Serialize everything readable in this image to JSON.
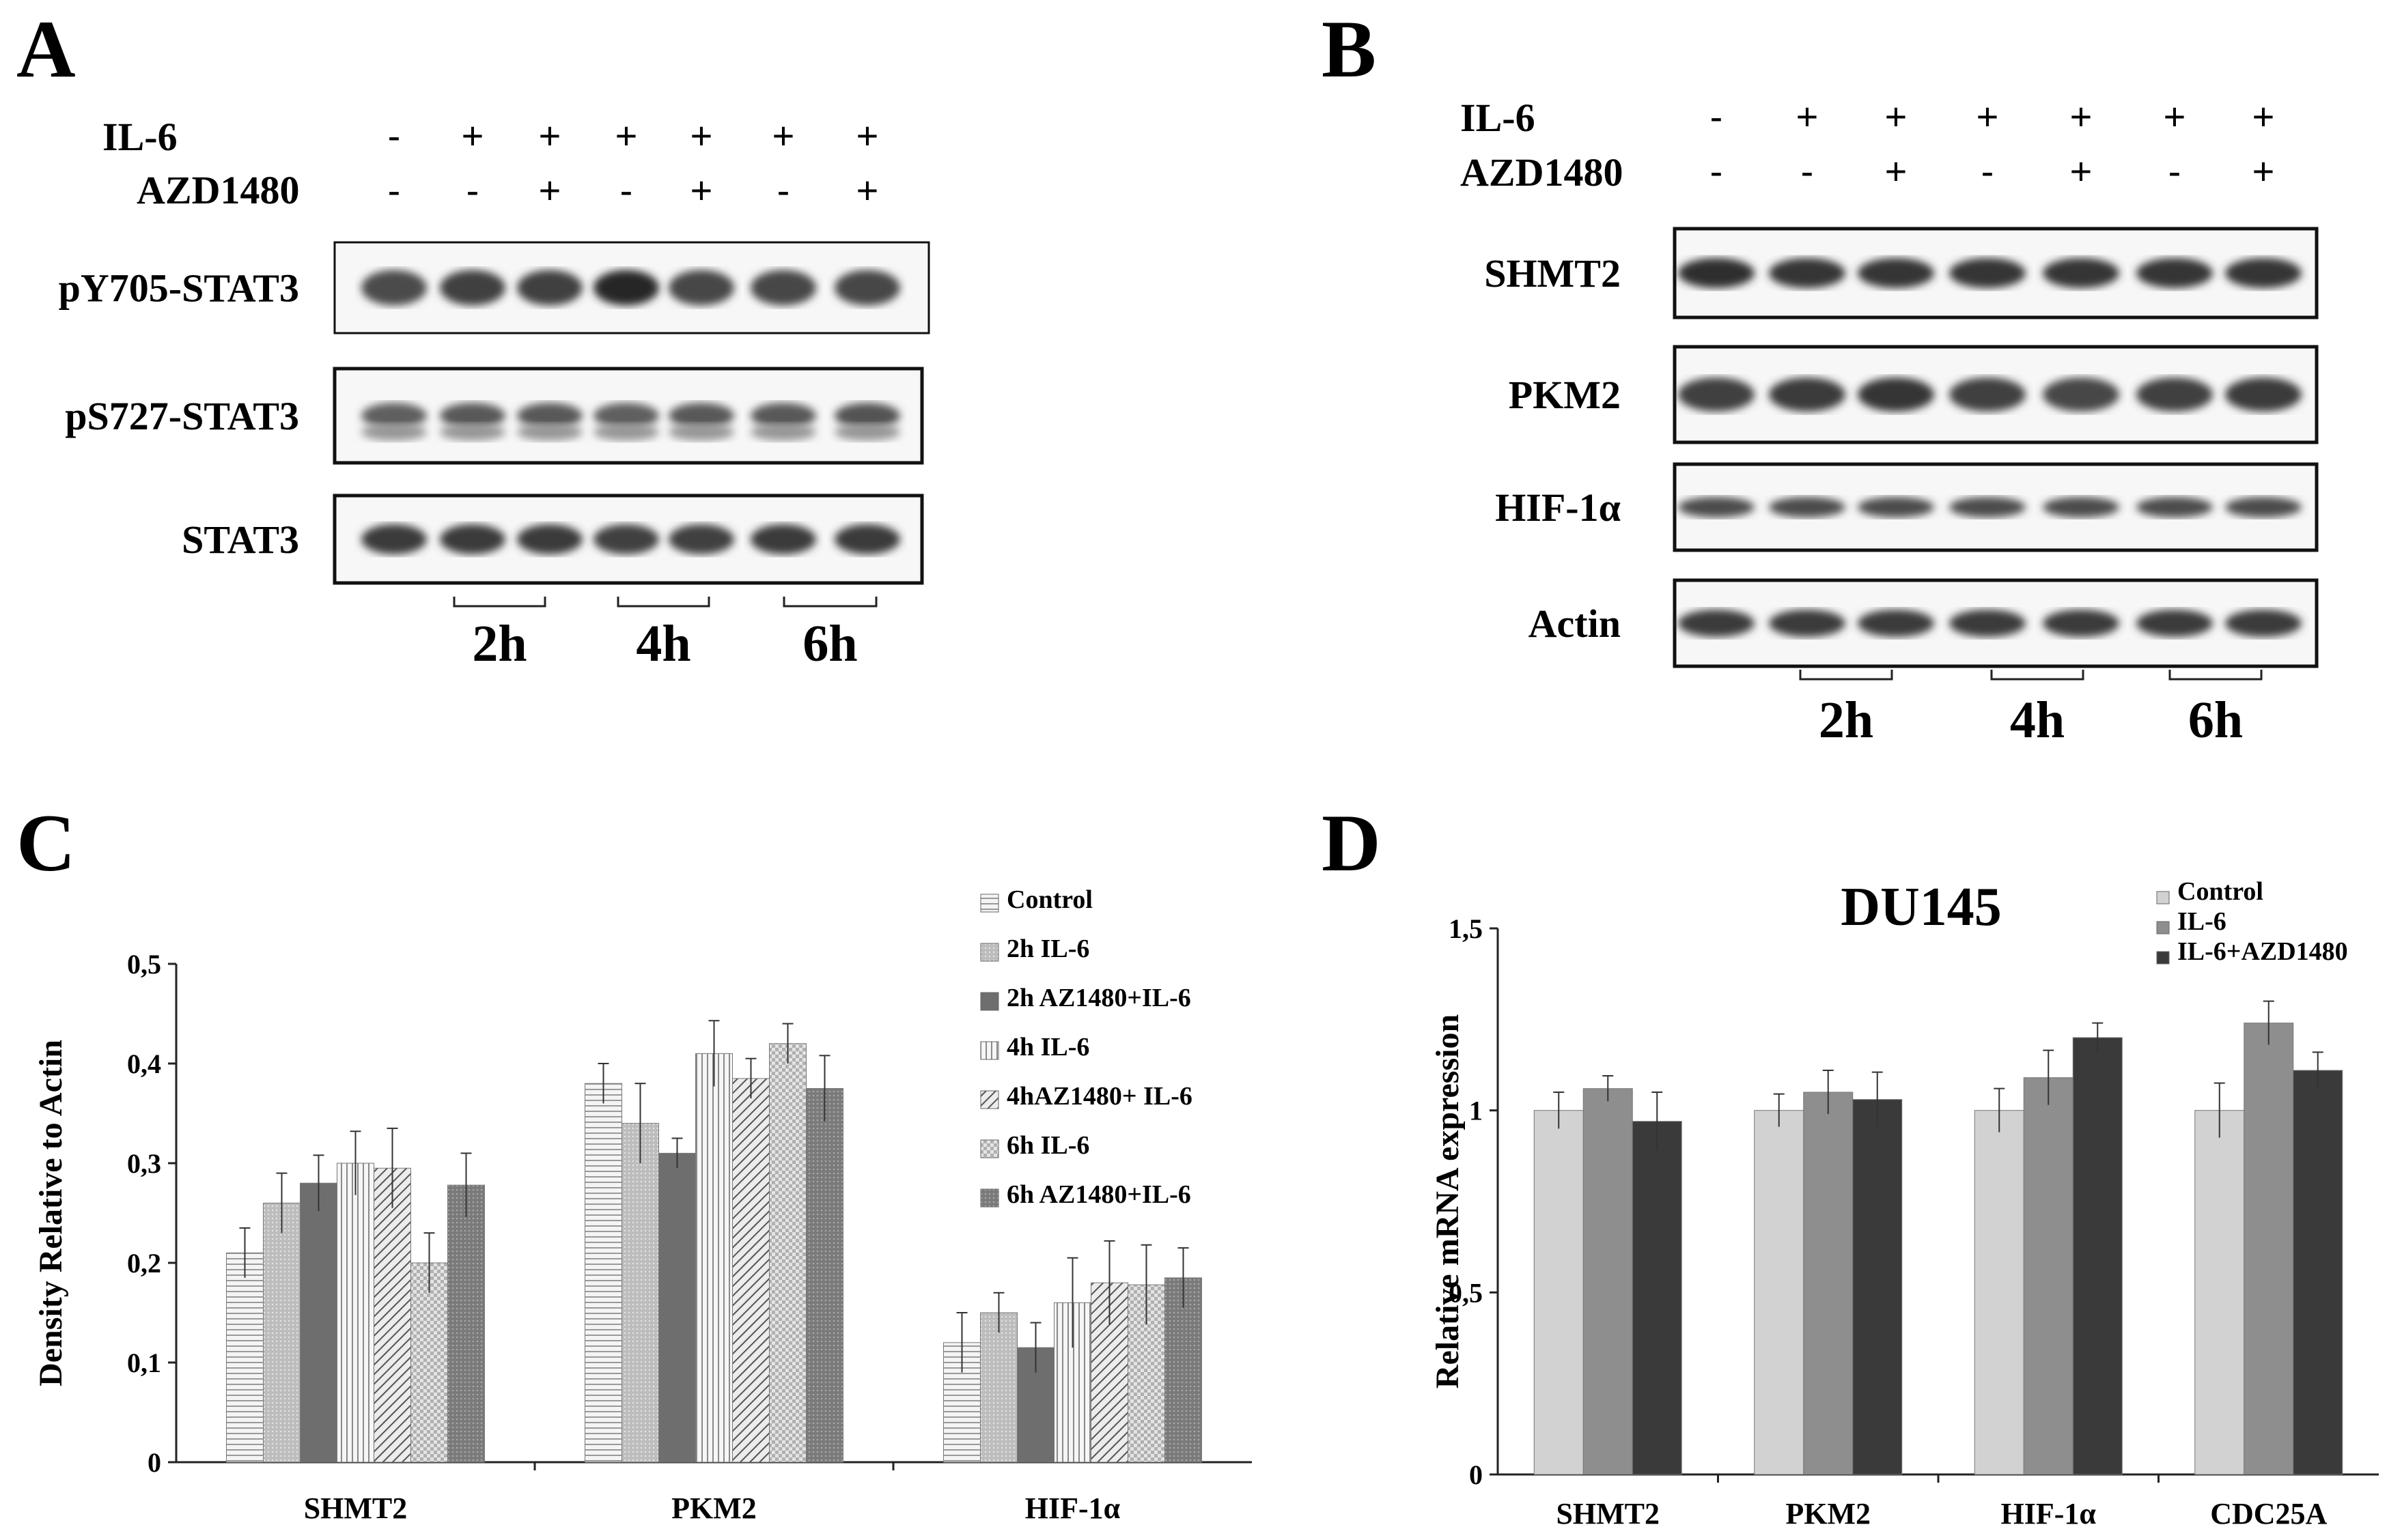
{
  "panels": {
    "A": {
      "letter": "A",
      "treatments": [
        {
          "label": "IL-6",
          "signs": [
            "-",
            "+",
            "+",
            "+",
            "+",
            "+",
            "+"
          ]
        },
        {
          "label": "AZD1480",
          "signs": [
            "-",
            "-",
            "+",
            "-",
            "+",
            "-",
            "+"
          ]
        }
      ],
      "blots": [
        "pY705-STAT3",
        "pS727-STAT3",
        "STAT3"
      ],
      "times": [
        "2h",
        "4h",
        "6h"
      ]
    },
    "B": {
      "letter": "B",
      "treatments": [
        {
          "label": "IL-6",
          "signs": [
            "-",
            "+",
            "+",
            "+",
            "+",
            "+",
            "+"
          ]
        },
        {
          "label": "AZD1480",
          "signs": [
            "-",
            "-",
            "+",
            "-",
            "+",
            "-",
            "+"
          ]
        }
      ],
      "blots": [
        "SHMT2",
        "PKM2",
        "HIF-1α",
        "Actin"
      ],
      "times": [
        "2h",
        "4h",
        "6h"
      ]
    },
    "C": {
      "letter": "C"
    },
    "D": {
      "letter": "D"
    }
  },
  "chart_data": [
    {
      "panel": "C",
      "type": "bar",
      "title": "",
      "xlabel": "",
      "ylabel": "Density Relative to Actin",
      "ylim": [
        0,
        0.5
      ],
      "yticks": [
        "0",
        "0,1",
        "0,2",
        "0,3",
        "0,4",
        "0,5"
      ],
      "grid": false,
      "legend_position": "top-right",
      "categories": [
        "SHMT2",
        "PKM2",
        "HIF-1α"
      ],
      "series": [
        {
          "name": "Control",
          "values": [
            0.21,
            0.38,
            0.12
          ],
          "errors": [
            0.025,
            0.02,
            0.03
          ],
          "color": "#efefef",
          "pattern": "hlines"
        },
        {
          "name": "2h IL-6",
          "values": [
            0.26,
            0.34,
            0.15
          ],
          "errors": [
            0.03,
            0.04,
            0.02
          ],
          "color": "#c8c8c8",
          "pattern": "dots"
        },
        {
          "name": "2h AZ1480+IL-6",
          "values": [
            0.28,
            0.31,
            0.115
          ],
          "errors": [
            0.028,
            0.015,
            0.025
          ],
          "color": "#6e6e6e",
          "pattern": "solid"
        },
        {
          "name": "4h IL-6",
          "values": [
            0.3,
            0.41,
            0.16
          ],
          "errors": [
            0.032,
            0.033,
            0.045
          ],
          "color": "#f3f3f3",
          "pattern": "vlines"
        },
        {
          "name": "4hAZ1480+ IL-6",
          "values": [
            0.295,
            0.385,
            0.18
          ],
          "errors": [
            0.04,
            0.02,
            0.042
          ],
          "color": "#e0e0e0",
          "pattern": "diag"
        },
        {
          "name": "6h IL-6",
          "values": [
            0.2,
            0.42,
            0.178
          ],
          "errors": [
            0.03,
            0.02,
            0.04
          ],
          "color": "#d6d6d6",
          "pattern": "checker"
        },
        {
          "name": "6h AZ1480+IL-6",
          "values": [
            0.278,
            0.375,
            0.185
          ],
          "errors": [
            0.032,
            0.033,
            0.03
          ],
          "color": "#8a8a8a",
          "pattern": "dots"
        }
      ]
    },
    {
      "panel": "D",
      "type": "bar",
      "title": "DU145",
      "xlabel": "",
      "ylabel": "Relative mRNA expression",
      "ylim": [
        0,
        1.5
      ],
      "yticks": [
        "0",
        "0,5",
        "1",
        "1,5"
      ],
      "grid": false,
      "legend_position": "top-right",
      "categories": [
        "SHMT2",
        "PKM2",
        "HIF-1α",
        "CDC25A"
      ],
      "series": [
        {
          "name": "Control",
          "values": [
            1.0,
            1.0,
            1.0,
            1.0
          ],
          "errors": [
            0.05,
            0.045,
            0.06,
            0.075
          ],
          "color": "#d2d2d2",
          "pattern": "solid"
        },
        {
          "name": "IL-6",
          "values": [
            1.06,
            1.05,
            1.09,
            1.24
          ],
          "errors": [
            0.035,
            0.06,
            0.075,
            0.06
          ],
          "color": "#8e8e8e",
          "pattern": "solid"
        },
        {
          "name": "IL-6+AZD1480",
          "values": [
            0.97,
            1.03,
            1.2,
            1.11
          ],
          "errors": [
            0.08,
            0.075,
            0.04,
            0.05
          ],
          "color": "#3a3a3a",
          "pattern": "solid"
        }
      ]
    }
  ]
}
